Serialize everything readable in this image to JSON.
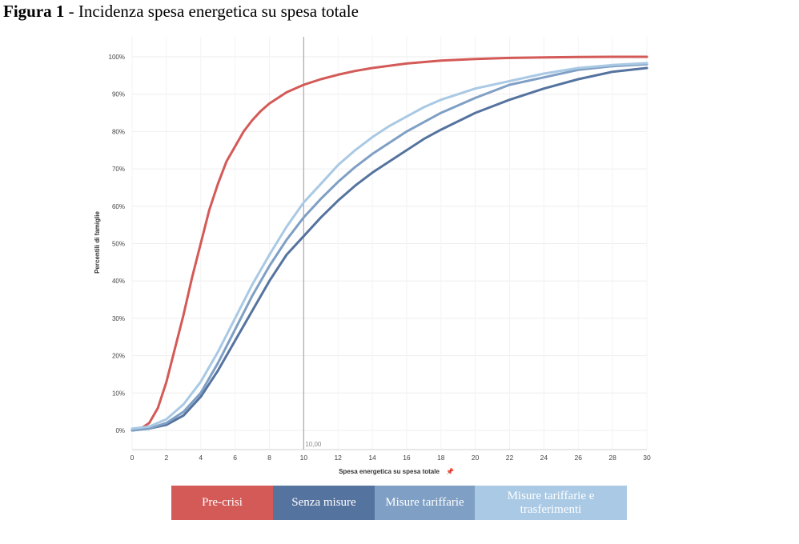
{
  "figure": {
    "number": "Figura 1",
    "separator": " - ",
    "title": "Incidenza spesa energetica su spesa totale"
  },
  "chart_data": {
    "type": "line",
    "xlabel": "Spesa energetica su spesa totale",
    "xlabel_icon": "pin-icon",
    "ylabel": "Percentili di famiglie",
    "xlim": [
      0,
      30
    ],
    "ylim": [
      -5,
      102
    ],
    "x_ticks": [
      "0",
      "2",
      "4",
      "6",
      "8",
      "10",
      "12",
      "14",
      "16",
      "18",
      "20",
      "22",
      "24",
      "26",
      "28",
      "30"
    ],
    "y_ticks": [
      "0%",
      "10%",
      "20%",
      "30%",
      "40%",
      "50%",
      "60%",
      "70%",
      "80%",
      "90%",
      "100%"
    ],
    "reference_line": {
      "x": 10,
      "label": "10,00"
    },
    "grid": true,
    "legend_position": "bottom",
    "series": [
      {
        "name": "Pre-crisi",
        "color": "#d35a57",
        "x": [
          0,
          0.5,
          1,
          1.5,
          2,
          2.5,
          3,
          3.5,
          4,
          4.5,
          5,
          5.5,
          6,
          6.5,
          7,
          7.5,
          8,
          9,
          10,
          11,
          12,
          13,
          14,
          16,
          18,
          20,
          22,
          24,
          26,
          28,
          30
        ],
        "y": [
          0,
          0.5,
          2,
          6,
          13,
          22,
          31,
          41,
          50,
          59,
          66,
          72,
          76,
          80,
          83,
          85.5,
          87.5,
          90.5,
          92.5,
          94,
          95.2,
          96.2,
          97,
          98.2,
          99,
          99.4,
          99.7,
          99.85,
          99.95,
          100,
          100
        ]
      },
      {
        "name": "Senza misure",
        "color": "#55739f",
        "x": [
          0,
          1,
          2,
          3,
          4,
          5,
          6,
          7,
          8,
          9,
          10,
          11,
          12,
          13,
          14,
          15,
          16,
          17,
          18,
          20,
          22,
          24,
          26,
          28,
          30
        ],
        "y": [
          0,
          0.5,
          1.5,
          4,
          9,
          16,
          24,
          32,
          40,
          47,
          52,
          57,
          61.5,
          65.5,
          69,
          72,
          75,
          78,
          80.5,
          85,
          88.5,
          91.5,
          94,
          96,
          97
        ]
      },
      {
        "name": "Misure tariffarie",
        "color": "#7f9fc4",
        "x": [
          0,
          1,
          2,
          3,
          4,
          5,
          6,
          7,
          8,
          9,
          10,
          11,
          12,
          13,
          14,
          15,
          16,
          17,
          18,
          20,
          22,
          24,
          26,
          28,
          30
        ],
        "y": [
          0,
          0.5,
          2,
          5,
          10,
          18,
          27,
          36,
          44,
          51,
          57,
          62,
          66.5,
          70.5,
          74,
          77,
          80,
          82.5,
          85,
          89,
          92.5,
          94.5,
          96.5,
          97.5,
          98
        ]
      },
      {
        "name": "Misure tariffarie e trasferimenti",
        "color": "#a9c9e4",
        "x": [
          0,
          1,
          2,
          3,
          4,
          5,
          6,
          7,
          8,
          9,
          10,
          11,
          12,
          13,
          14,
          15,
          16,
          17,
          18,
          20,
          22,
          24,
          26,
          28,
          30
        ],
        "y": [
          0.5,
          1,
          3,
          7,
          13,
          21,
          30,
          39,
          47,
          54.5,
          61,
          66,
          71,
          75,
          78.5,
          81.5,
          84,
          86.5,
          88.5,
          91.5,
          93.5,
          95.5,
          97,
          97.8,
          98.3
        ]
      }
    ]
  },
  "legend": [
    {
      "label": "Pre-crisi",
      "color": "#d35a57"
    },
    {
      "label": "Senza misure",
      "color": "#55739f"
    },
    {
      "label": "Misure tariffarie",
      "color": "#7f9fc4"
    },
    {
      "label": "Misure tariffarie e trasferimenti",
      "color": "#a9c9e4"
    }
  ]
}
